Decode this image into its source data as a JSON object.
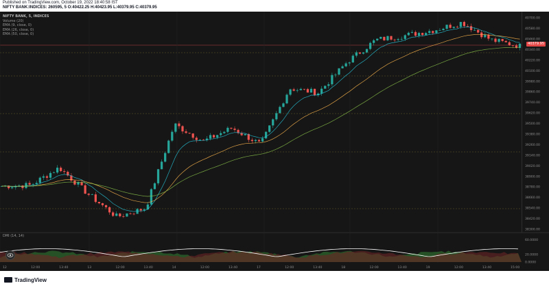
{
  "header": {
    "published": "Published on TradingView.com, October 19, 2022 18:40:58 IST",
    "quote": "NIFTY BANK:INDICES: 260595, 5  O:40422.25 H:40423.95 L:40379.95 C:40379.95"
  },
  "legend": {
    "symbol": "NIFTY BANK, 5, INDICES",
    "indicators": [
      "Volume (20)",
      "EMA (9, close, 0)",
      "EMA (26, close, 0)",
      "EMA (50, close, 0)"
    ]
  },
  "price_scale": {
    "ticks": [
      "40700.00",
      "40580.00",
      "40460.00",
      "40340.00",
      "40220.00",
      "40100.00",
      "39980.00",
      "39860.00",
      "39740.00",
      "39620.00",
      "39500.00",
      "39380.00",
      "39260.00",
      "39140.00",
      "39020.00",
      "38900.00",
      "38780.00",
      "38660.00",
      "38540.00",
      "38420.00",
      "38300.00"
    ],
    "last_price": "40379.95"
  },
  "dmi": {
    "label": "DMI (14, 14)",
    "ticks": [
      "60.0000",
      "20.0000",
      "0.0000"
    ]
  },
  "time_scale": {
    "labels": [
      "12",
      "12:00",
      "13:40",
      "13",
      "12:00",
      "13:40",
      "14",
      "12:00",
      "13:40",
      "17",
      "12:00",
      "13:40",
      "18",
      "12:00",
      "13:40",
      "19",
      "12:00",
      "13:40",
      "15:00"
    ]
  },
  "footer": {
    "brand": "TradingView"
  },
  "colors": {
    "background": "#161616",
    "up": "#26a69a",
    "down": "#ef5350",
    "ema_short": "#26c6da",
    "ema_mid": "#ffb74d",
    "ema_long": "#8bc34a",
    "dmi_line": "#ffffff"
  },
  "chart_data": {
    "type": "line",
    "title": "NIFTY BANK, 5, INDICES",
    "ylim": [
      38300,
      40740
    ],
    "x": [
      "12",
      "12:00",
      "13:40",
      "13",
      "12:00",
      "13:40",
      "14",
      "12:00",
      "13:40",
      "17",
      "12:00",
      "13:40",
      "18",
      "12:00",
      "13:40",
      "19",
      "12:00",
      "13:40",
      "15:00"
    ],
    "series": [
      {
        "name": "Price",
        "values": [
          38790,
          38800,
          39000,
          38700,
          38440,
          38540,
          39490,
          39300,
          39450,
          39260,
          39900,
          39850,
          40200,
          40450,
          40500,
          40560,
          40650,
          40450,
          40380
        ]
      }
    ]
  }
}
